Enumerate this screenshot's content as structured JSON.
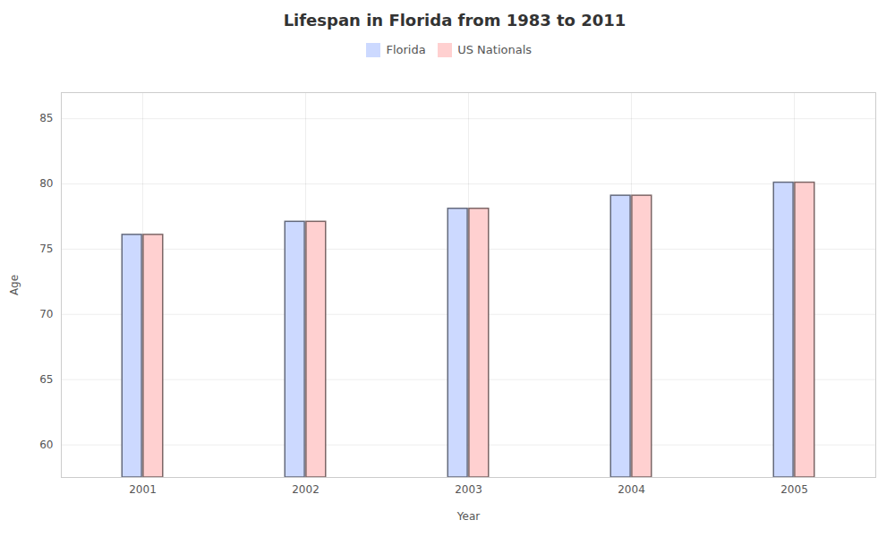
{
  "chart_data": {
    "type": "bar",
    "title": "Lifespan in Florida from 1983 to 2011",
    "xlabel": "Year",
    "ylabel": "Age",
    "categories": [
      "2001",
      "2002",
      "2003",
      "2004",
      "2005"
    ],
    "series": [
      {
        "name": "Florida",
        "color": "#ccd9ff",
        "values": [
          76.1,
          77.1,
          78.1,
          79.1,
          80.1
        ]
      },
      {
        "name": "US Nationals",
        "color": "#ffd0d0",
        "values": [
          76.1,
          77.1,
          78.1,
          79.1,
          80.1
        ]
      }
    ],
    "ylim": [
      57.5,
      87
    ],
    "yticks": [
      60,
      65,
      70,
      75,
      80,
      85
    ],
    "grid": true,
    "legend": "top"
  }
}
